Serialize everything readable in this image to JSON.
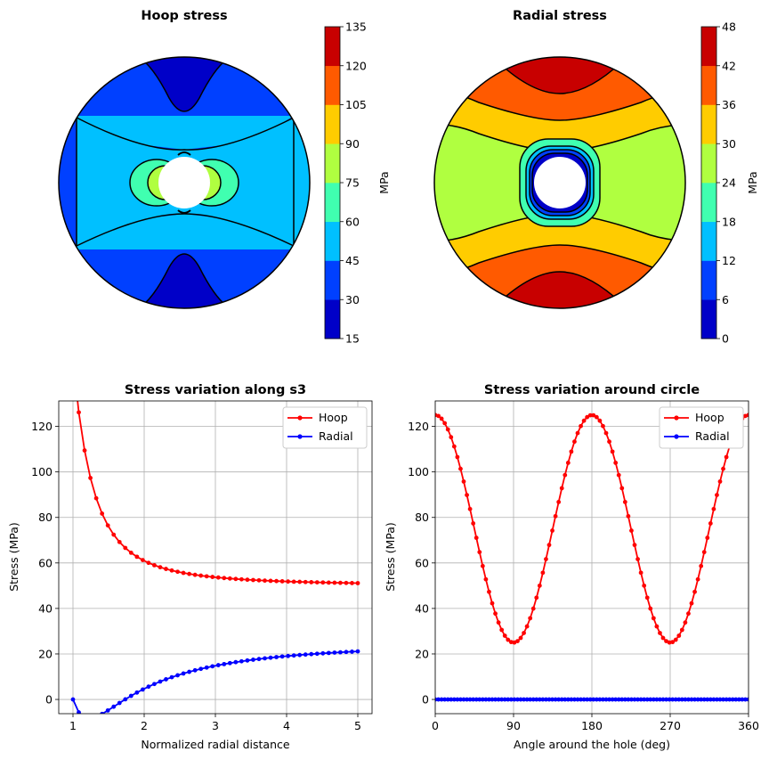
{
  "colors": {
    "hoop_line": "#ff0000",
    "radial_line": "#0000ff",
    "contour_levels": [
      "#0000c8",
      "#0040ff",
      "#00c0ff",
      "#40ffb0",
      "#b0ff40",
      "#ffcc00",
      "#ff5a00",
      "#c80000"
    ],
    "grid": "#b0b0b0"
  },
  "chart_data": [
    {
      "type": "contour",
      "title": "Hoop stress",
      "colorbar_label": "MPa",
      "levels": [
        15,
        30,
        45,
        60,
        75,
        90,
        105,
        120,
        135
      ],
      "level_labels": [
        "15",
        "30",
        "45",
        "60",
        "75",
        "90",
        "105",
        "120",
        "135"
      ]
    },
    {
      "type": "contour",
      "title": "Radial stress",
      "colorbar_label": "MPa",
      "levels": [
        0,
        6,
        12,
        18,
        24,
        30,
        36,
        42,
        48
      ],
      "level_labels": [
        "0",
        "6",
        "12",
        "18",
        "24",
        "30",
        "36",
        "42",
        "48"
      ]
    },
    {
      "type": "line",
      "title": "Stress variation along s3",
      "xlabel": "Normalized radial distance",
      "ylabel": "Stress (MPa)",
      "xlim": [
        0.8,
        5.2
      ],
      "ylim": [
        -6.25,
        131.2
      ],
      "xticks": [
        1,
        2,
        3,
        4,
        5
      ],
      "yticks": [
        0,
        20,
        40,
        60,
        80,
        100,
        120
      ],
      "grid": true,
      "legend": "top-right",
      "x_range": [
        1,
        5
      ],
      "num_points": 50,
      "series": [
        {
          "name": "Hoop",
          "formula": "25*(2 + 1/r^2 + 3/r^4)"
        },
        {
          "name": "Radial",
          "formula": "25*(1 + 3/r^4 - 4/r^2)"
        }
      ]
    },
    {
      "type": "line",
      "title": "Stress variation around circle",
      "xlabel": "Angle around the hole (deg)",
      "ylabel": "Stress (MPa)",
      "xlim": [
        0,
        360
      ],
      "ylim": [
        -6.25,
        131.2
      ],
      "xticks": [
        0,
        90,
        180,
        270,
        360
      ],
      "yticks": [
        0,
        20,
        40,
        60,
        80,
        100,
        120
      ],
      "grid": true,
      "legend": "top-right",
      "x_range": [
        0,
        360
      ],
      "num_points": 100,
      "series": [
        {
          "name": "Hoop",
          "formula": "75 + 50*cos(2*theta)"
        },
        {
          "name": "Radial",
          "formula": "0"
        }
      ]
    }
  ]
}
